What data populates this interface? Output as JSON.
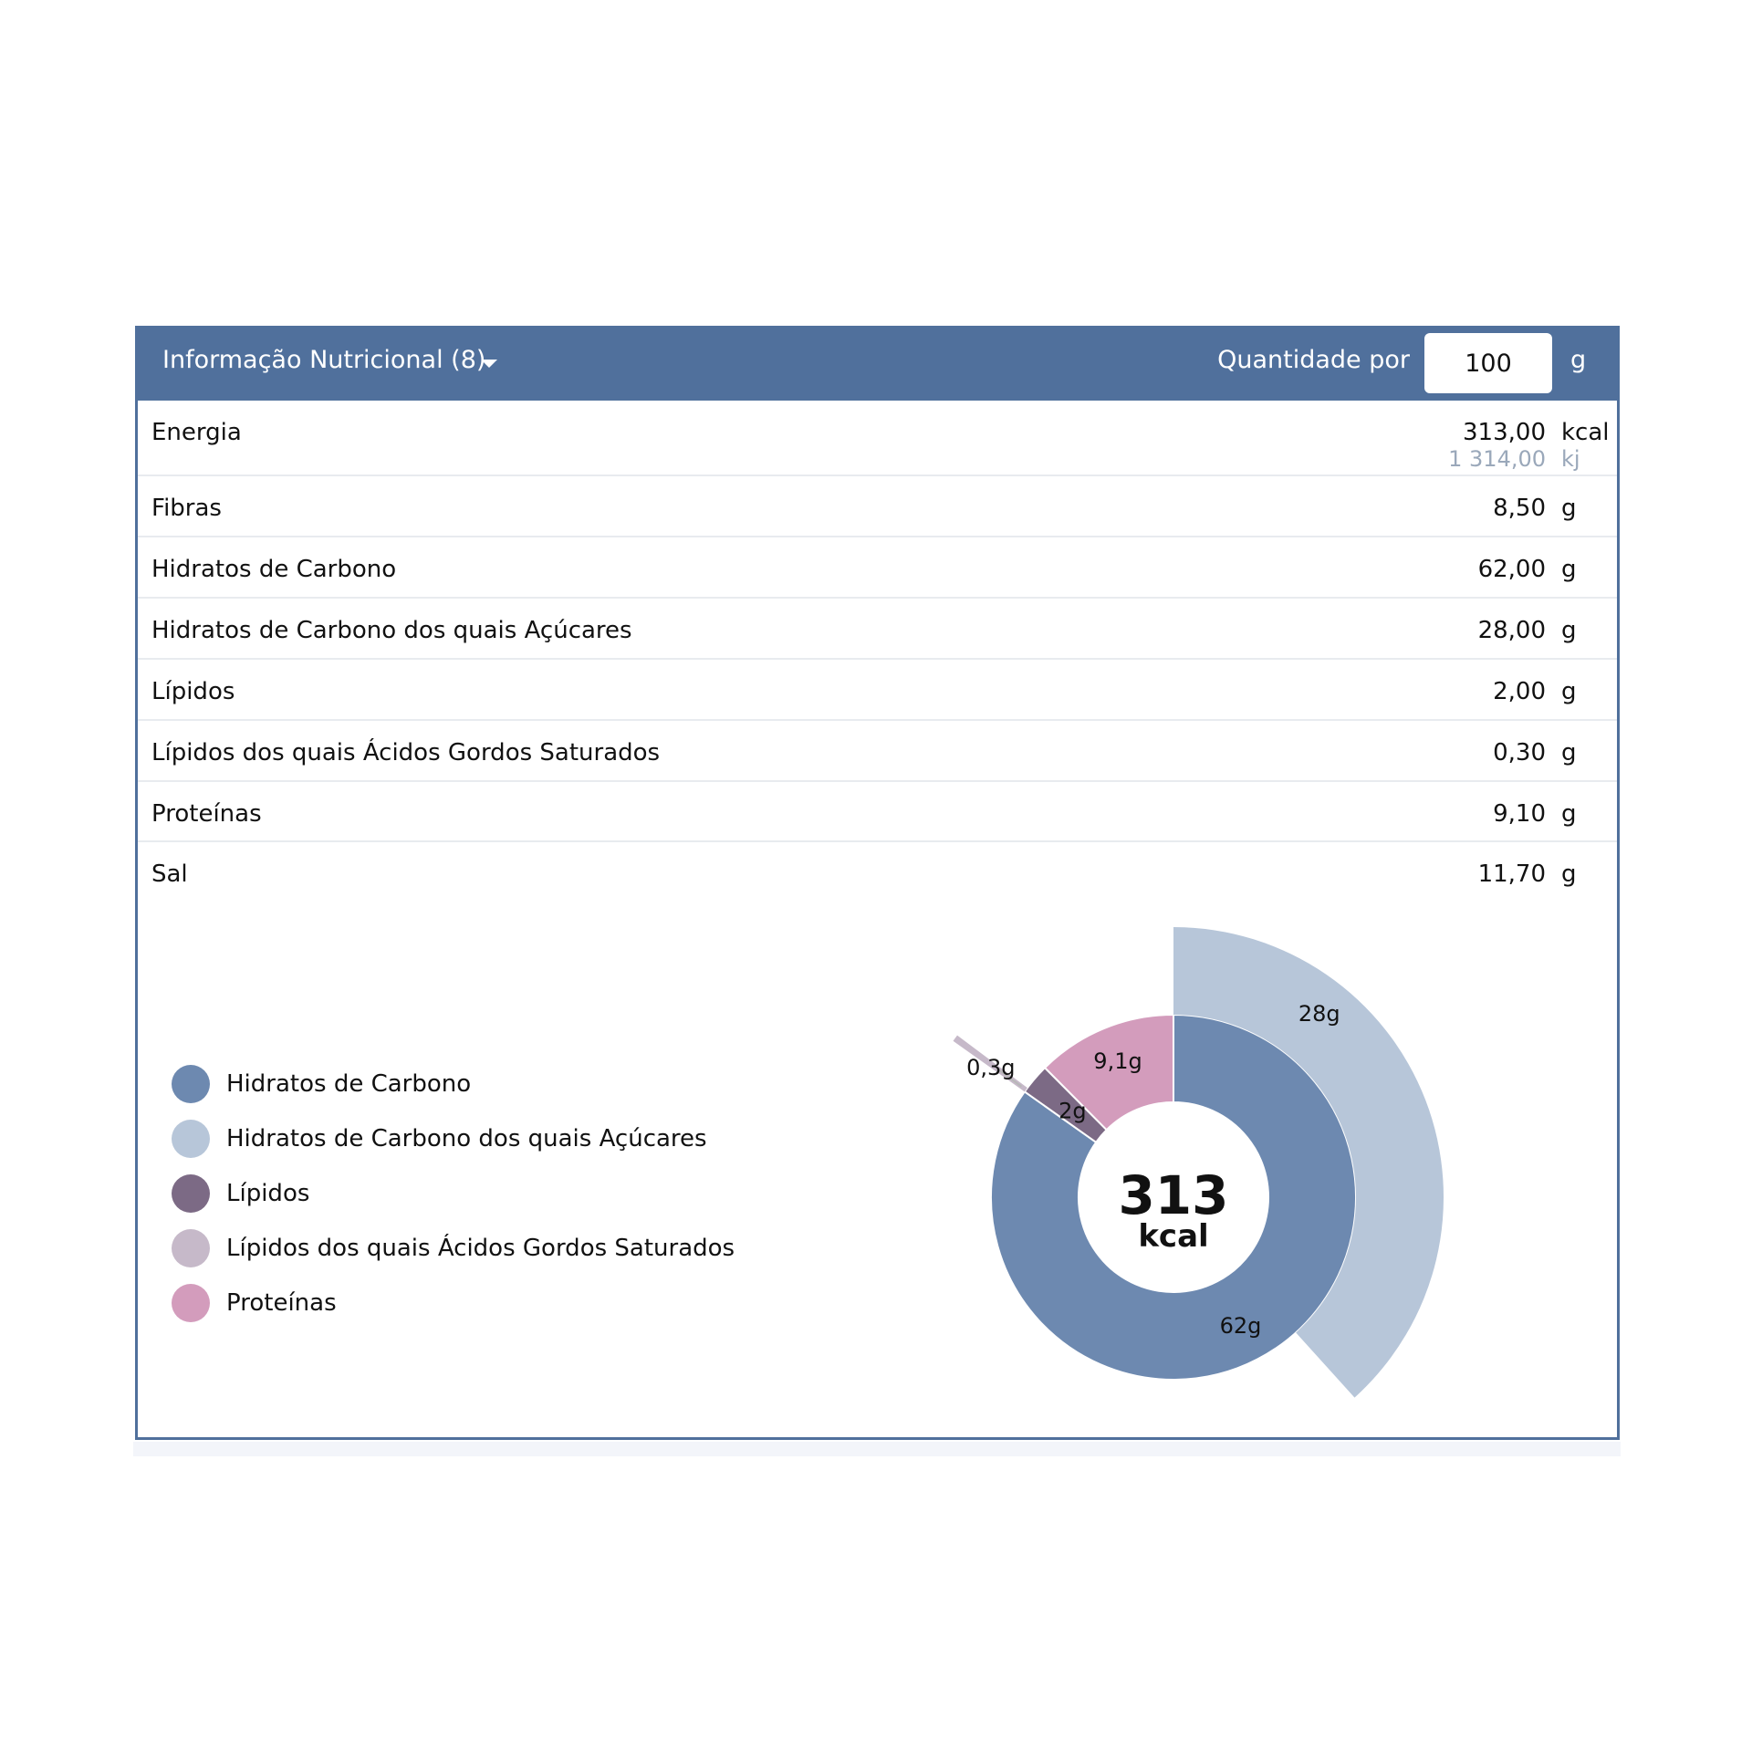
{
  "header": {
    "title": "Informação Nutricional (8)",
    "quantity_label": "Quantidade por",
    "quantity_value": "100",
    "quantity_unit": "g"
  },
  "rows": [
    {
      "label": "Energia",
      "value": "313,00",
      "unit": "kcal",
      "value2": "1 314,00",
      "unit2": "kj"
    },
    {
      "label": "Fibras",
      "value": "8,50",
      "unit": "g"
    },
    {
      "label": "Hidratos de Carbono",
      "value": "62,00",
      "unit": "g"
    },
    {
      "label": "Hidratos de Carbono dos quais Açúcares",
      "value": "28,00",
      "unit": "g"
    },
    {
      "label": "Lípidos",
      "value": "2,00",
      "unit": "g"
    },
    {
      "label": "Lípidos dos quais Ácidos Gordos Saturados",
      "value": "0,30",
      "unit": "g"
    },
    {
      "label": "Proteínas",
      "value": "9,10",
      "unit": "g"
    },
    {
      "label": "Sal",
      "value": "11,70",
      "unit": "g"
    }
  ],
  "legend": [
    {
      "label": "Hidratos de Carbono",
      "color": "#6d89b0"
    },
    {
      "label": "Hidratos de Carbono dos quais Açúcares",
      "color": "#b7c6d9"
    },
    {
      "label": "Lípidos",
      "color": "#7c6a85"
    },
    {
      "label": "Lípidos dos quais Ácidos Gordos Saturados",
      "color": "#c6b9c9"
    },
    {
      "label": "Proteínas",
      "color": "#d39cbc"
    }
  ],
  "chart_data": {
    "type": "pie",
    "center_value": "313",
    "center_unit": "kcal",
    "inner": [
      {
        "name": "Hidratos de Carbono",
        "value": 62,
        "label": "62g",
        "color": "#6d89b0"
      },
      {
        "name": "Lípidos",
        "value": 2,
        "label": "2g",
        "color": "#7c6a85"
      },
      {
        "name": "Proteínas",
        "value": 9.1,
        "label": "9,1g",
        "color": "#d39cbc"
      }
    ],
    "outer": [
      {
        "name": "Hidratos de Carbono dos quais Açúcares",
        "value": 28,
        "label": "28g",
        "color": "#b7c6d9",
        "parent": "Hidratos de Carbono"
      },
      {
        "name": "Lípidos dos quais Ácidos Gordos Saturados",
        "value": 0.3,
        "label": "0,3g",
        "color": "#c6b9c9",
        "parent": "Lípidos"
      }
    ]
  }
}
